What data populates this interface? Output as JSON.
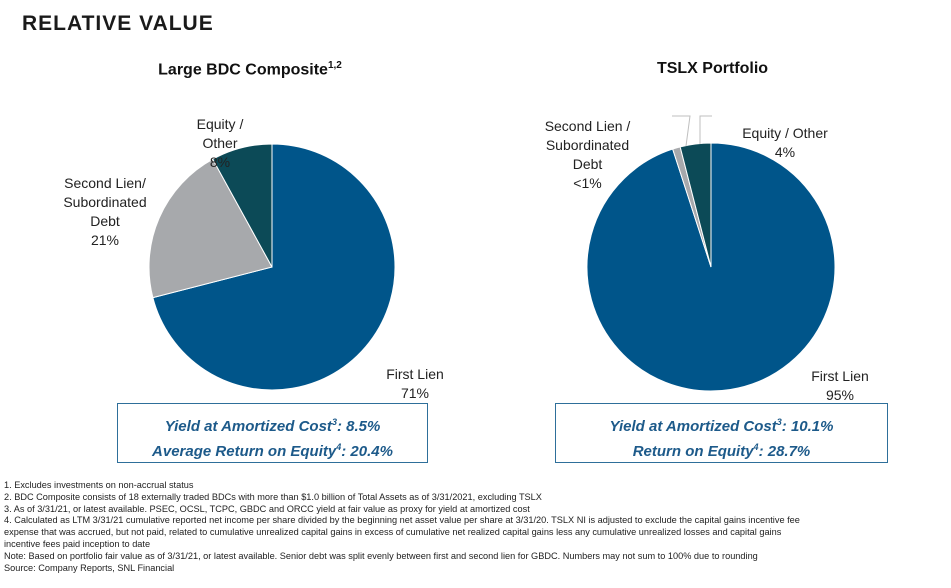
{
  "page": {
    "title": "RELATIVE VALUE"
  },
  "chart_data": [
    {
      "type": "pie",
      "title": "Large BDC Composite",
      "title_sup": "1,2",
      "slices": [
        {
          "label": "First Lien",
          "value": 71,
          "display": "71%",
          "color": "#00558a"
        },
        {
          "label": "Second Lien/\nSubordinated\nDebt",
          "value": 21,
          "display": "21%",
          "color": "#a7a9ac"
        },
        {
          "label": "Equity /\nOther",
          "value": 8,
          "display": "8%",
          "color": "#0c4a57"
        }
      ],
      "box": {
        "line1": {
          "text": "Yield at Amortized Cost",
          "sup": "3",
          "value": ": 8.5%"
        },
        "line2": {
          "text": "Average Return on Equity",
          "sup": "4",
          "value": ": 20.4%"
        }
      }
    },
    {
      "type": "pie",
      "title": "TSLX Portfolio",
      "title_sup": "",
      "slices": [
        {
          "label": "First Lien",
          "value": 95,
          "display": "95%",
          "color": "#00558a"
        },
        {
          "label": "Second Lien /\nSubordinated\nDebt",
          "value": 1,
          "display": "<1%",
          "color": "#a7a9ac"
        },
        {
          "label": "Equity / Other",
          "value": 4,
          "display": "4%",
          "color": "#0c4a57"
        }
      ],
      "box": {
        "line1": {
          "text": "Yield at Amortized Cost",
          "sup": "3",
          "value": ": 10.1%"
        },
        "line2": {
          "text": "Return on Equity",
          "sup": "4",
          "value": ": 28.7%"
        }
      }
    }
  ],
  "footnotes": [
    "1. Excludes investments on non-accrual status",
    "2. BDC Composite consists of 18 externally traded BDCs with more than $1.0 billion of Total Assets as of 3/31/2021, excluding TSLX",
    "3. As of 3/31/21, or latest available. PSEC, OCSL, TCPC, GBDC and ORCC yield at fair value as proxy for yield at amortized cost",
    "4. Calculated as LTM 3/31/21 cumulative reported net income per share divided by the beginning net asset value per share at 3/31/20. TSLX NI is adjusted to exclude the capital gains incentive fee",
    "expense that was accrued, but not paid, related to cumulative unrealized capital gains in excess of cumulative net realized capital gains less any cumulative unrealized losses and capital gains",
    "incentive fees paid inception to date",
    "Note:  Based on portfolio fair value as of 3/31/21, or latest available. Senior debt was split evenly between first and second lien for GBDC. Numbers may not sum to 100% due to rounding",
    "Source: Company Reports, SNL Financial"
  ]
}
